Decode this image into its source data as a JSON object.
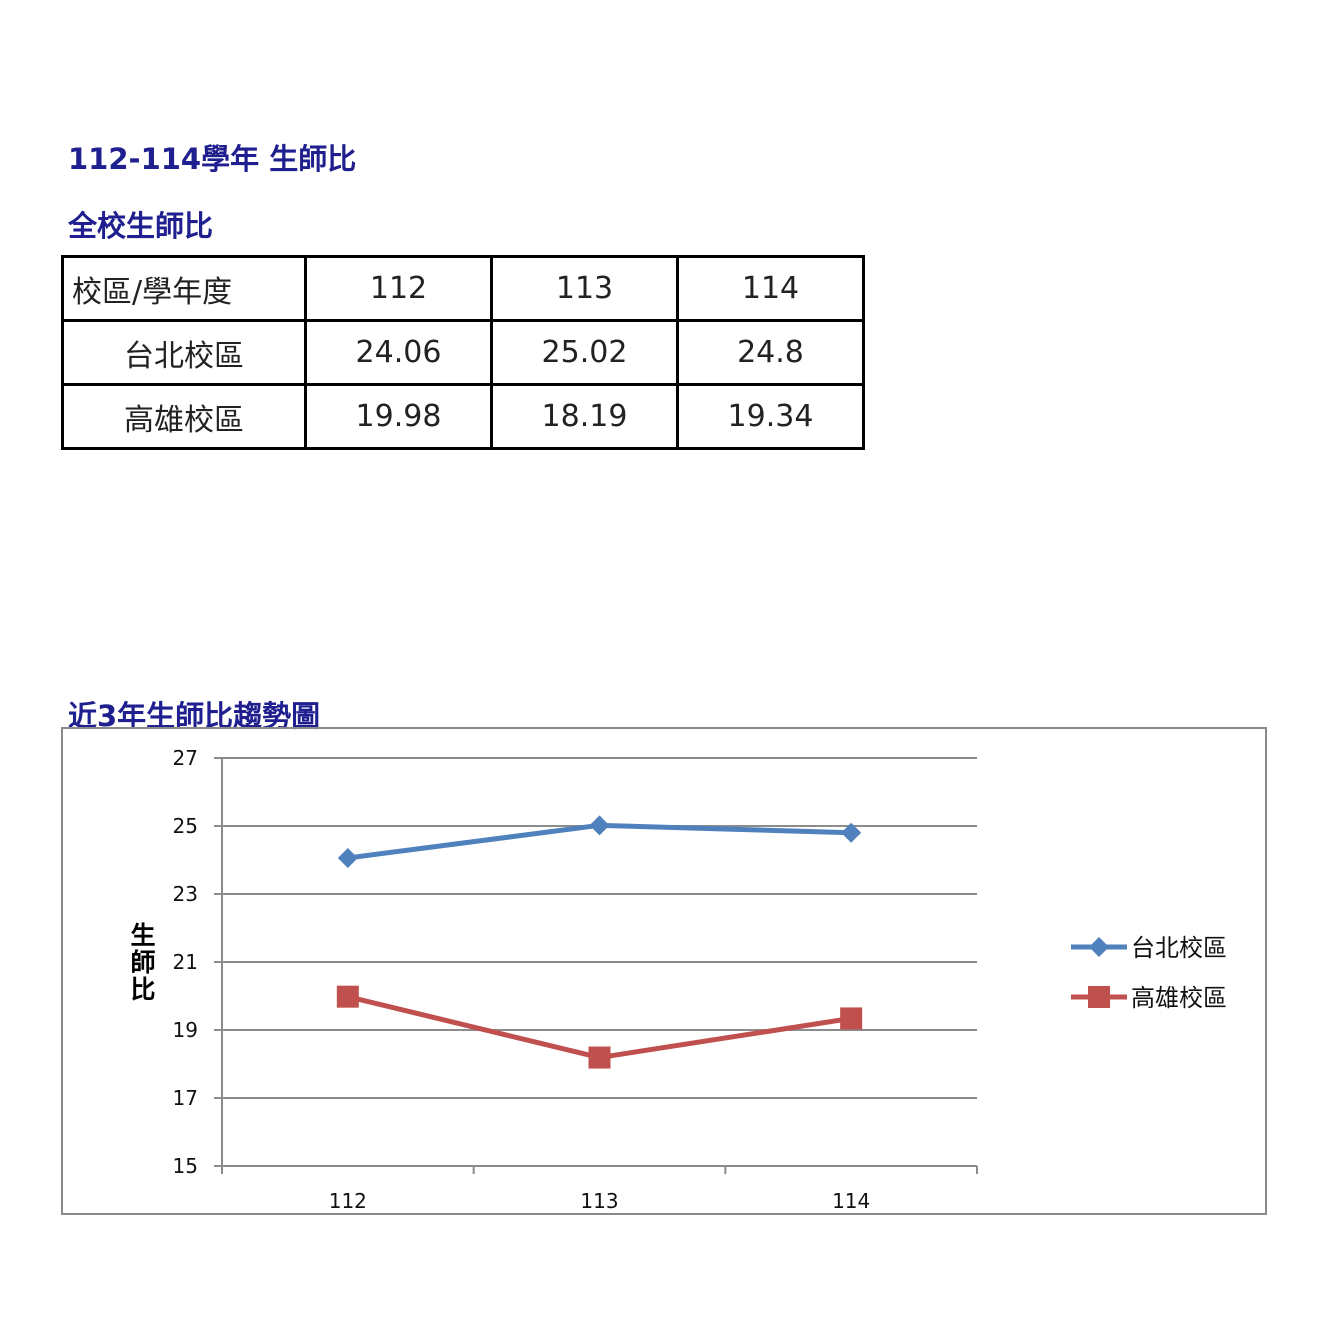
{
  "title": "112-114學年 生師比",
  "table_title": "全校生師比",
  "table": {
    "header": [
      "校區/學年度",
      "112",
      "113",
      "114"
    ],
    "rows": [
      [
        "台北校區",
        "24.06",
        "25.02",
        "24.8"
      ],
      [
        "高雄校區",
        "19.98",
        "18.19",
        "19.34"
      ]
    ]
  },
  "chart_title": "近3年生師比趨勢圖",
  "chart_data": {
    "type": "line",
    "categories": [
      "112",
      "113",
      "114"
    ],
    "series": [
      {
        "name": "台北校區",
        "values": [
          24.06,
          25.02,
          24.8
        ],
        "color": "#4f81bd",
        "marker": "diamond"
      },
      {
        "name": "高雄校區",
        "values": [
          19.98,
          18.19,
          19.34
        ],
        "color": "#c0504d",
        "marker": "square"
      }
    ],
    "title": "",
    "xlabel": "",
    "ylabel": "生師比",
    "ylim": [
      15,
      27
    ],
    "yticks": [
      15,
      17,
      19,
      21,
      23,
      25,
      27
    ],
    "grid": true,
    "legend_position": "right"
  }
}
